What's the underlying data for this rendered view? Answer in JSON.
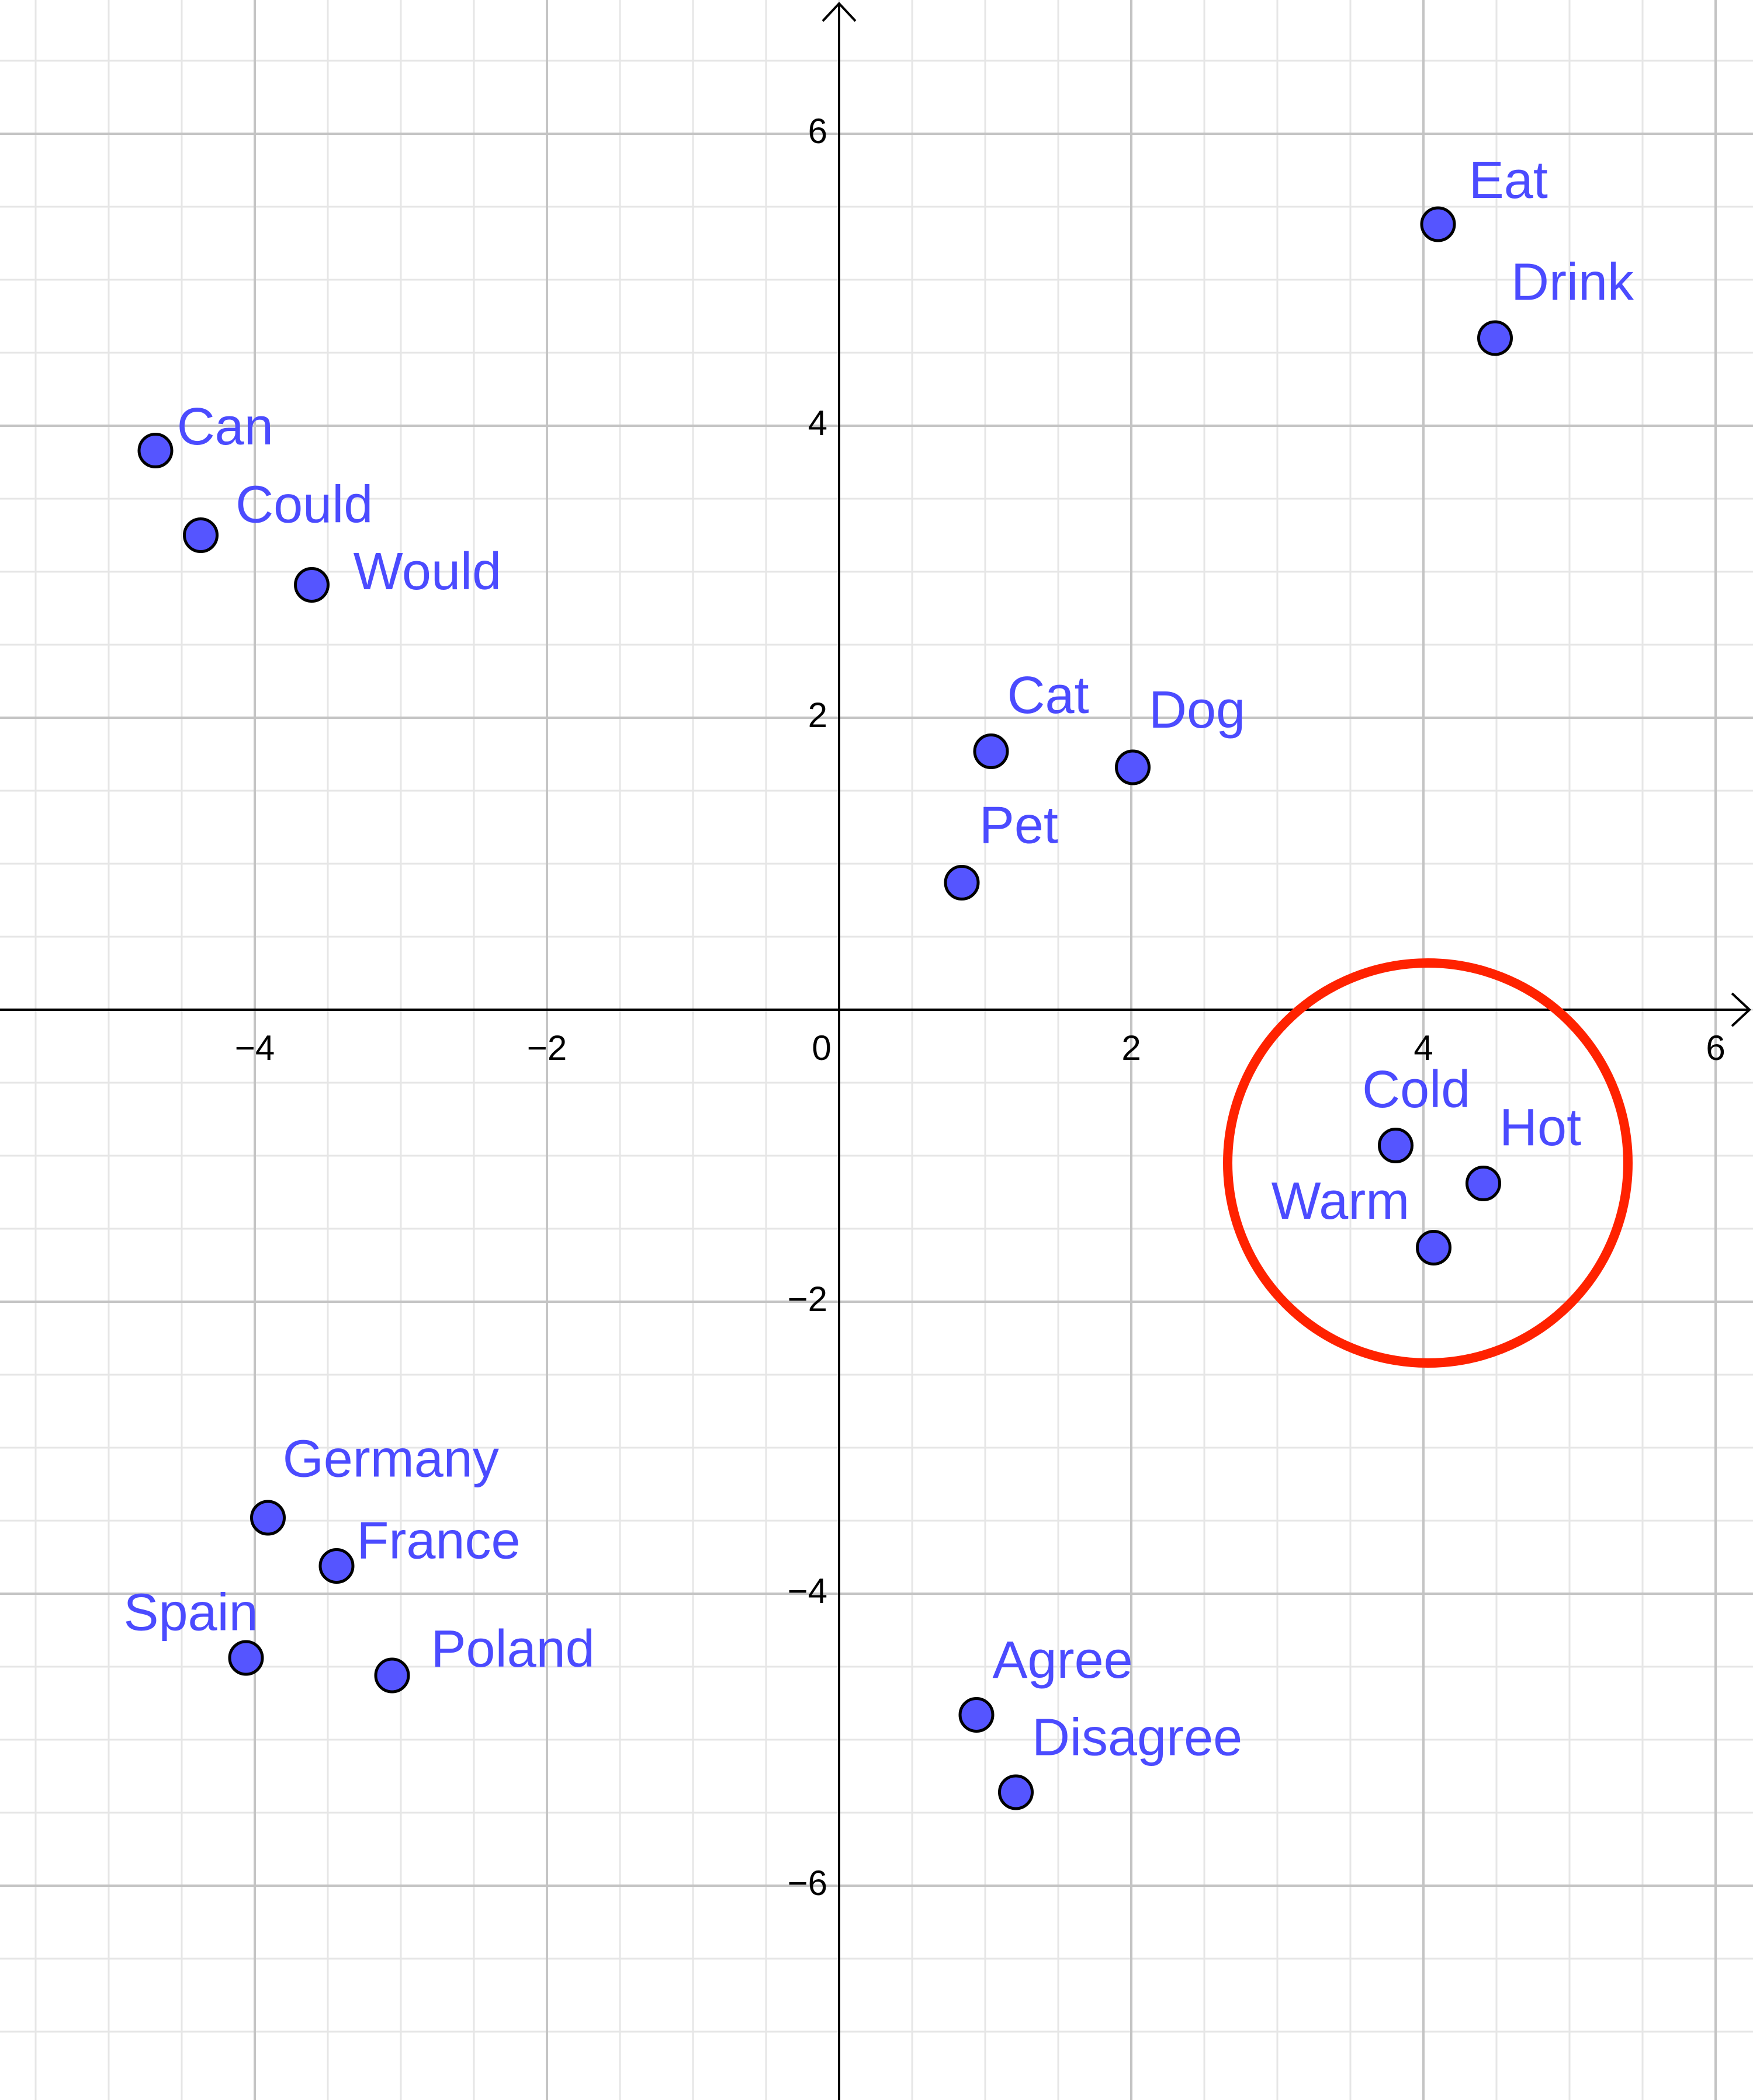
{
  "chart_data": {
    "type": "scatter",
    "labels": [
      "Eat",
      "Drink",
      "Can",
      "Could",
      "Would",
      "Cat",
      "Dog",
      "Pet",
      "Cold",
      "Hot",
      "Warm",
      "Germany",
      "France",
      "Spain",
      "Poland",
      "Agree",
      "Disagree"
    ],
    "x": [
      4.1,
      4.49,
      -4.68,
      -4.37,
      -3.61,
      1.04,
      2.01,
      0.84,
      3.81,
      4.41,
      4.07,
      -3.91,
      -3.44,
      -4.06,
      -3.06,
      0.94,
      1.21
    ],
    "y": [
      5.38,
      4.6,
      3.83,
      3.25,
      2.91,
      1.77,
      1.66,
      0.87,
      -0.93,
      -1.19,
      -1.63,
      -3.48,
      -3.81,
      -4.44,
      -4.56,
      -4.83,
      -5.36
    ],
    "color": "#5555ff",
    "xlim": [
      -5.744,
      6.256
    ],
    "ylim": [
      -7.468,
      6.916
    ],
    "xticks": [
      {
        "value": -4,
        "label": "−4"
      },
      {
        "value": -2,
        "label": "−2"
      },
      0,
      2,
      4,
      6
    ],
    "yticks": [
      {
        "value": -6,
        "label": "−6"
      },
      {
        "value": -4,
        "label": "−4"
      },
      {
        "value": -2,
        "label": "−2"
      },
      2,
      4,
      6
    ],
    "grid": true,
    "minor_grid_step": 0.5,
    "highlight": {
      "x": 4.03,
      "y": -1.05,
      "r": 1.37,
      "color": "#ff2200"
    }
  }
}
